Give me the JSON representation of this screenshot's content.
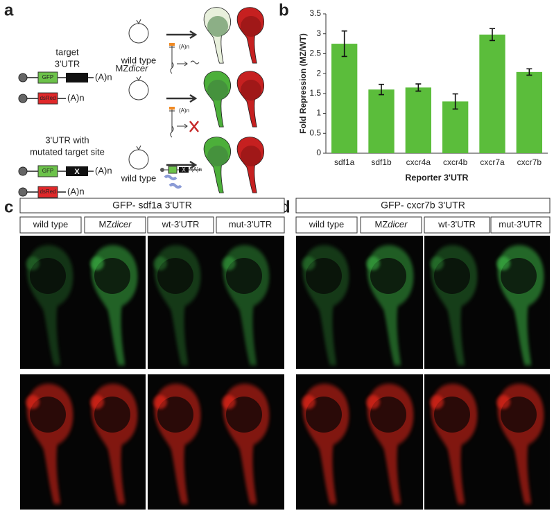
{
  "panel_labels": [
    "a",
    "b",
    "c",
    "d"
  ],
  "diagram": {
    "target_label": [
      "target",
      "3'UTR"
    ],
    "mutated_label": [
      "3'UTR with",
      "mutated target site"
    ],
    "constructs": [
      {
        "gene": "GFP",
        "tail": "(A)n"
      },
      {
        "gene": "dsRed",
        "tail": "(A)n"
      },
      {
        "gene": "GFP",
        "site": "X",
        "tail": "(A)n"
      },
      {
        "gene": "dsRed",
        "tail": "(A)n"
      }
    ],
    "conditions": [
      {
        "text": "wild type"
      },
      {
        "text": "MZ",
        "italic": "dicer"
      },
      {
        "text": "wild type"
      }
    ],
    "schematic_tails": [
      "(A)n",
      "(A)n",
      "(A)n"
    ],
    "schematic_site": "X"
  },
  "chart_data": {
    "type": "bar",
    "y_label": "Fold Repression (MZ/WT)",
    "x_label": "Reporter 3'UTR",
    "categories": [
      "sdf1a",
      "sdf1b",
      "cxcr4a",
      "cxcr4b",
      "cxcr7a",
      "cxcr7b"
    ],
    "values": [
      2.75,
      1.6,
      1.65,
      1.3,
      2.98,
      2.04
    ],
    "errors": [
      0.32,
      0.13,
      0.09,
      0.19,
      0.15,
      0.08
    ],
    "color": "#5bbd3b",
    "ylim": [
      0,
      3.5
    ],
    "yticks": [
      0,
      0.5,
      1,
      1.5,
      2,
      2.5,
      3,
      3.5
    ]
  },
  "panels": [
    {
      "title": "GFP- sdf1a 3'UTR",
      "columns": [
        {
          "text": "wild type"
        },
        {
          "text": "MZ",
          "italic": "dicer"
        },
        {
          "text": "wt-3'UTR"
        },
        {
          "text": "mut-3'UTR"
        }
      ]
    },
    {
      "title": "GFP- cxcr7b 3'UTR",
      "columns": [
        {
          "text": "wild type"
        },
        {
          "text": "MZ",
          "italic": "dicer"
        },
        {
          "text": "wt-3'UTR"
        },
        {
          "text": "mut-3'UTR"
        }
      ]
    }
  ]
}
